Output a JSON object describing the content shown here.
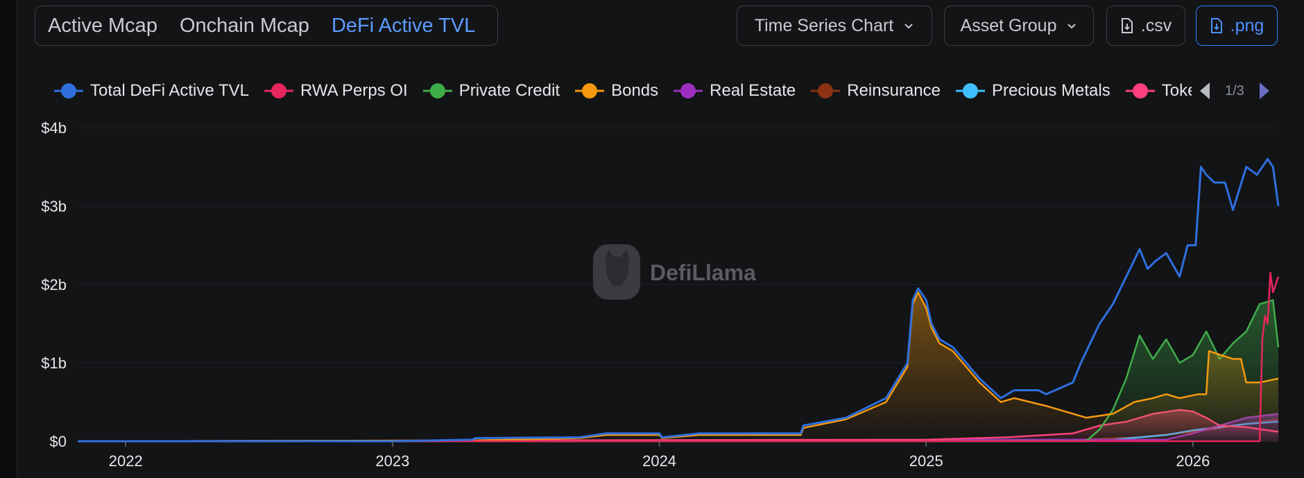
{
  "tabs": [
    {
      "label": "Active Mcap",
      "active": false
    },
    {
      "label": "Onchain Mcap",
      "active": false
    },
    {
      "label": "DeFi Active TVL",
      "active": true
    }
  ],
  "controls": {
    "chart_type": "Time Series Chart",
    "group": "Asset Group",
    "csv": ".csv",
    "png": ".png"
  },
  "legend_page": "1/3",
  "watermark": "DefiLlama",
  "colors": {
    "accent": "#4f8fff",
    "total": "#2f6fde",
    "rwa_perps": "#e8265e",
    "private_credit": "#3fae49",
    "bonds": "#f59a0e",
    "real_estate": "#9c2fbf",
    "reinsurance": "#8a3212",
    "precious_metals": "#3fbfff",
    "other": "#ff3f7f"
  },
  "chart_data": {
    "type": "area",
    "title": "",
    "xlabel": "",
    "ylabel": "",
    "x_range": [
      2021.82,
      2026.32
    ],
    "ylim": [
      0,
      4
    ],
    "y_unit": "billions USD",
    "y_ticks": [
      "$0",
      "$1b",
      "$2b",
      "$3b",
      "$4b"
    ],
    "x_ticks": [
      {
        "label": "2022",
        "value": 2022.0
      },
      {
        "label": "2023",
        "value": 2023.0
      },
      {
        "label": "2024",
        "value": 2024.0
      },
      {
        "label": "2025",
        "value": 2025.0
      },
      {
        "label": "2026",
        "value": 2026.0
      }
    ],
    "legend_placement": "top",
    "series": [
      {
        "name": "Total DeFi Active TVL",
        "key": "total",
        "x": [
          2021.82,
          2022.5,
          2023.0,
          2023.3,
          2023.31,
          2023.7,
          2023.8,
          2024.0,
          2024.01,
          2024.15,
          2024.5,
          2024.53,
          2024.54,
          2024.7,
          2024.85,
          2024.93,
          2024.95,
          2024.97,
          2025.0,
          2025.02,
          2025.05,
          2025.1,
          2025.2,
          2025.28,
          2025.33,
          2025.42,
          2025.45,
          2025.55,
          2025.58,
          2025.65,
          2025.7,
          2025.8,
          2025.83,
          2025.86,
          2025.9,
          2025.95,
          2025.98,
          2026.01,
          2026.03,
          2026.05,
          2026.08,
          2026.12,
          2026.15,
          2026.2,
          2026.24,
          2026.28,
          2026.3,
          2026.32
        ],
        "values": [
          0.0,
          0.0,
          0.0,
          0.02,
          0.04,
          0.05,
          0.1,
          0.1,
          0.05,
          0.1,
          0.1,
          0.1,
          0.2,
          0.3,
          0.55,
          1.0,
          1.8,
          1.95,
          1.8,
          1.5,
          1.3,
          1.2,
          0.8,
          0.55,
          0.65,
          0.65,
          0.6,
          0.75,
          1.0,
          1.5,
          1.75,
          2.45,
          2.2,
          2.3,
          2.4,
          2.1,
          2.5,
          2.5,
          3.5,
          3.4,
          3.3,
          3.3,
          2.95,
          3.5,
          3.4,
          3.6,
          3.5,
          3.0
        ]
      },
      {
        "name": "RWA Perps OI",
        "key": "rwa_perps",
        "x": [
          2021.82,
          2026.25,
          2026.26,
          2026.27,
          2026.28,
          2026.29,
          2026.3,
          2026.31,
          2026.32
        ],
        "values": [
          0.0,
          0.0,
          1.3,
          1.6,
          1.5,
          2.15,
          1.9,
          2.0,
          2.1
        ]
      },
      {
        "name": "Private Credit",
        "key": "private_credit",
        "x": [
          2021.82,
          2025.6,
          2025.65,
          2025.7,
          2025.75,
          2025.8,
          2025.85,
          2025.9,
          2025.95,
          2026.0,
          2026.05,
          2026.1,
          2026.15,
          2026.2,
          2026.25,
          2026.3,
          2026.32
        ],
        "values": [
          0.0,
          0.0,
          0.15,
          0.4,
          0.8,
          1.35,
          1.05,
          1.3,
          1.0,
          1.1,
          1.4,
          1.05,
          1.25,
          1.4,
          1.75,
          1.8,
          1.2
        ]
      },
      {
        "name": "Bonds",
        "key": "bonds",
        "x": [
          2021.82,
          2023.3,
          2023.7,
          2023.8,
          2024.0,
          2024.01,
          2024.15,
          2024.5,
          2024.53,
          2024.54,
          2024.7,
          2024.85,
          2024.93,
          2024.95,
          2024.97,
          2025.0,
          2025.02,
          2025.05,
          2025.1,
          2025.2,
          2025.28,
          2025.33,
          2025.45,
          2025.6,
          2025.7,
          2025.78,
          2025.85,
          2025.9,
          2025.95,
          2026.02,
          2026.05,
          2026.06,
          2026.15,
          2026.18,
          2026.2,
          2026.25,
          2026.32
        ],
        "values": [
          0.0,
          0.01,
          0.04,
          0.08,
          0.08,
          0.04,
          0.08,
          0.08,
          0.08,
          0.17,
          0.28,
          0.5,
          0.95,
          1.75,
          1.9,
          1.7,
          1.45,
          1.25,
          1.15,
          0.75,
          0.5,
          0.55,
          0.45,
          0.3,
          0.35,
          0.5,
          0.55,
          0.6,
          0.55,
          0.6,
          0.6,
          1.15,
          1.05,
          1.05,
          0.75,
          0.75,
          0.8
        ]
      },
      {
        "name": "Real Estate",
        "key": "real_estate",
        "x": [
          2021.82,
          2025.9,
          2026.0,
          2026.1,
          2026.2,
          2026.32
        ],
        "values": [
          0.0,
          0.02,
          0.1,
          0.2,
          0.3,
          0.35
        ]
      },
      {
        "name": "Reinsurance",
        "key": "reinsurance",
        "x": [
          2021.82,
          2025.5,
          2025.8,
          2026.0,
          2026.2,
          2026.32
        ],
        "values": [
          0.0,
          0.01,
          0.05,
          0.12,
          0.22,
          0.28
        ]
      },
      {
        "name": "Precious Metals",
        "key": "precious_metals",
        "x": [
          2021.82,
          2025.7,
          2025.9,
          2026.0,
          2026.1,
          2026.2,
          2026.32
        ],
        "values": [
          0.0,
          0.02,
          0.08,
          0.14,
          0.18,
          0.22,
          0.25
        ]
      },
      {
        "name": "Tokenized Stocks",
        "key": "other",
        "x": [
          2021.82,
          2025.0,
          2025.3,
          2025.55,
          2025.65,
          2025.75,
          2025.85,
          2025.95,
          2026.0,
          2026.05,
          2026.1,
          2026.2,
          2026.32
        ],
        "values": [
          0.0,
          0.02,
          0.05,
          0.1,
          0.2,
          0.25,
          0.35,
          0.4,
          0.38,
          0.3,
          0.2,
          0.18,
          0.12
        ]
      }
    ]
  }
}
